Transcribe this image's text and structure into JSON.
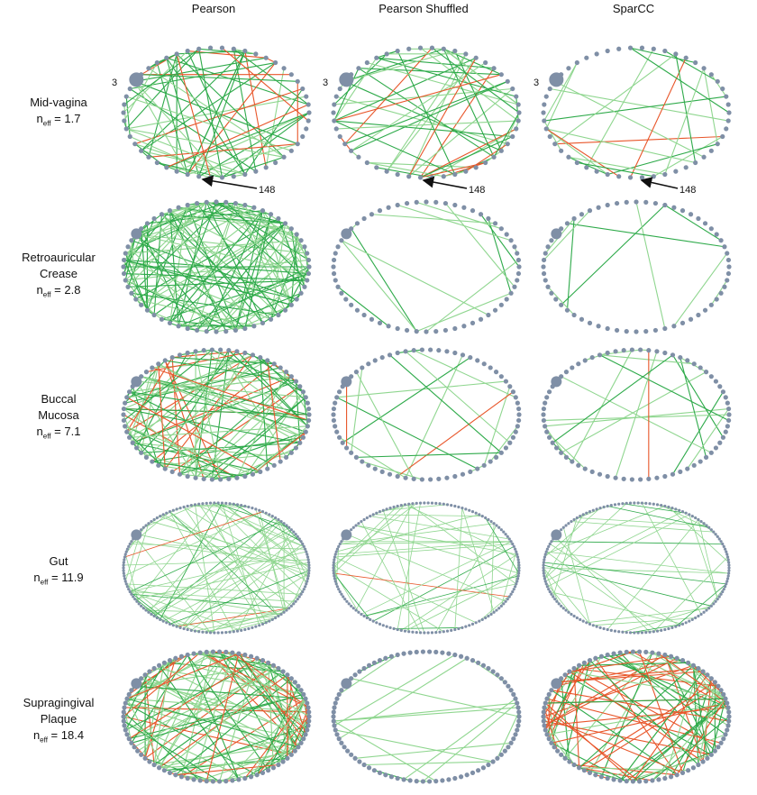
{
  "columns": [
    "Pearson",
    "Pearson Shuffled",
    "SparCC"
  ],
  "rows": [
    {
      "name_lines": [
        "Mid-vagina"
      ],
      "neff_label": "n",
      "neff_sub": "eff",
      "neff_value": "= 1.7"
    },
    {
      "name_lines": [
        "Retroauricular",
        "Crease"
      ],
      "neff_label": "n",
      "neff_sub": "eff",
      "neff_value": "= 2.8"
    },
    {
      "name_lines": [
        "Buccal",
        "Mucosa"
      ],
      "neff_label": "n",
      "neff_sub": "eff",
      "neff_value": "= 7.1"
    },
    {
      "name_lines": [
        "Gut"
      ],
      "neff_label": "n",
      "neff_sub": "eff",
      "neff_value": "= 11.9"
    },
    {
      "name_lines": [
        "Supragingival",
        "Plaque"
      ],
      "neff_label": "n",
      "neff_sub": "eff",
      "neff_value": "= 18.4"
    }
  ],
  "annotations": {
    "node_a": "3",
    "node_b": "148"
  },
  "colors": {
    "node": "#7f8fa6",
    "positive": "#2eaa4a",
    "positive_light": "#8fd68f",
    "negative": "#e8562a"
  }
}
